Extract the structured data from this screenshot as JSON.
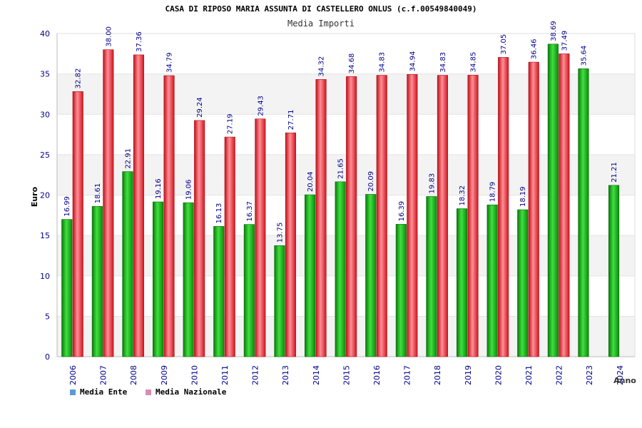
{
  "chart_data": {
    "type": "bar",
    "title": "CASA DI RIPOSO MARIA ASSUNTA DI CASTELLERO ONLUS (c.f.00549840049)",
    "subtitle": "Media Importi",
    "ylabel": "Euro",
    "xlabel": "Anno",
    "ylim": [
      0,
      40
    ],
    "yticks": [
      0,
      5,
      10,
      15,
      20,
      25,
      30,
      35,
      40
    ],
    "grid": true,
    "legend_position": "bottom-left",
    "categories": [
      "2006",
      "2007",
      "2008",
      "2009",
      "2010",
      "2011",
      "2012",
      "2013",
      "2014",
      "2015",
      "2016",
      "2017",
      "2018",
      "2019",
      "2020",
      "2021",
      "2022",
      "2023",
      "2024"
    ],
    "series": [
      {
        "name": "Media Ente",
        "color": "#12a012",
        "legend_color": "#5b9bd5",
        "values": [
          16.99,
          18.61,
          22.91,
          19.16,
          19.06,
          16.13,
          16.37,
          13.75,
          20.04,
          21.65,
          20.09,
          16.39,
          19.83,
          18.32,
          18.79,
          18.19,
          38.69,
          35.64,
          21.21
        ],
        "labels": [
          "16.99",
          "18.61",
          "22.91",
          "19.16",
          "19.06",
          "16.13",
          "16.37",
          "13.75",
          "20.04",
          "21.65",
          "20.09",
          "16.39",
          "19.83",
          "18.32",
          "18.79",
          "18.19",
          "38.69",
          "35.64",
          "21.21"
        ]
      },
      {
        "name": "Media Nazionale",
        "color": "#e0202a",
        "legend_color": "#d98cb3",
        "values": [
          32.82,
          38.0,
          37.36,
          34.79,
          29.24,
          27.19,
          29.43,
          27.71,
          34.32,
          34.68,
          34.83,
          34.94,
          34.83,
          34.85,
          37.05,
          36.46,
          37.49,
          null,
          null
        ],
        "labels": [
          "32.82",
          "38.00",
          "37.36",
          "34.79",
          "29.24",
          "27.19",
          "29.43",
          "27.71",
          "34.32",
          "34.68",
          "34.83",
          "34.94",
          "34.83",
          "34.85",
          "37.05",
          "36.46",
          "37.49",
          "",
          ""
        ]
      }
    ]
  }
}
